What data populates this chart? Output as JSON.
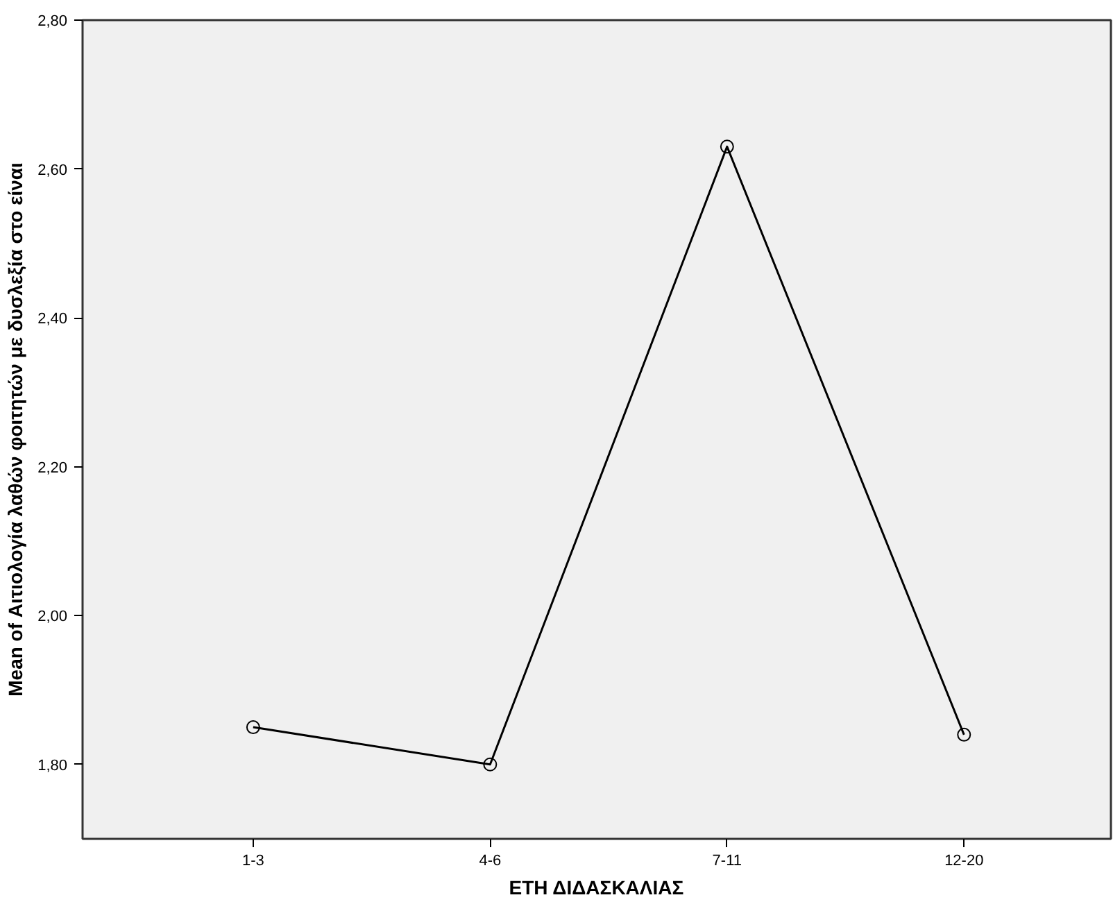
{
  "chart_data": {
    "type": "line",
    "xlabel": "ΕΤΗ ΔΙΔΑΣΚΑΛΙΑΣ",
    "ylabel": "Mean of Αιτιολογία λαθών φοιτητών με δυσλεξία στο είναι",
    "categories": [
      "1-3",
      "4-6",
      "7-11",
      "12-20"
    ],
    "series": [
      {
        "color": "#000000",
        "values": [
          1.85,
          1.8,
          2.63,
          1.84
        ]
      }
    ],
    "ylim": [
      1.7,
      2.8
    ],
    "yticks": [
      {
        "value": 1.8,
        "label": "1,80"
      },
      {
        "value": 2.0,
        "label": "2,00"
      },
      {
        "value": 2.2,
        "label": "2,20"
      },
      {
        "value": 2.4,
        "label": "2,40"
      },
      {
        "value": 2.6,
        "label": "2,60"
      },
      {
        "value": 2.8,
        "label": "2,80"
      }
    ],
    "grid": false,
    "marker": "circle",
    "line_style": "solid"
  }
}
